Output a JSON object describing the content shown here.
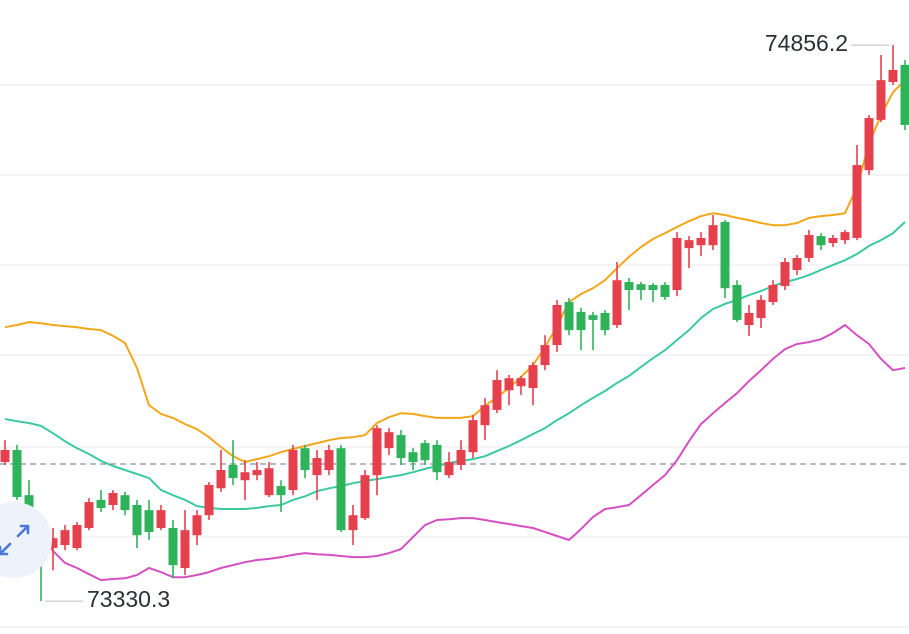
{
  "chart_data": {
    "type": "candlestick",
    "ylim": [
      73240,
      74980
    ],
    "up_color": "#e5404e",
    "down_color": "#2fb35a",
    "open": [
      73712,
      73745,
      73621,
      73553,
      73476,
      73484,
      73476,
      73531,
      73608,
      73594,
      73621,
      73594,
      73580,
      73531,
      73531,
      73421,
      73511,
      73566,
      73640,
      73704,
      73662,
      73676,
      73621,
      73646,
      73635,
      73750,
      73676,
      73690,
      73750,
      73525,
      73558,
      73676,
      73750,
      73786,
      73739,
      73764,
      73759,
      73676,
      73704,
      73739,
      73813,
      73855,
      73909,
      73920,
      73915,
      73978,
      74033,
      74151,
      74124,
      74115,
      74121,
      74088,
      74206,
      74200,
      74198,
      74198,
      74184,
      74299,
      74307,
      74307,
      74371,
      74198,
      74088,
      74107,
      74151,
      74195,
      74239,
      74272,
      74332,
      74313,
      74321,
      74327,
      74513,
      74651,
      74755,
      74802
    ],
    "high": [
      73772,
      73759,
      73662,
      73566,
      73531,
      73539,
      73547,
      73613,
      73635,
      73635,
      73630,
      73608,
      73608,
      73594,
      73553,
      73580,
      73580,
      73657,
      73745,
      73772,
      73717,
      73712,
      73712,
      73662,
      73759,
      73759,
      73745,
      73759,
      73759,
      73594,
      73690,
      73813,
      73805,
      73800,
      73750,
      73772,
      73772,
      73739,
      73772,
      73841,
      73888,
      73964,
      73951,
      73948,
      73986,
      74060,
      74157,
      74162,
      74135,
      74124,
      74129,
      74261,
      74217,
      74206,
      74203,
      74206,
      74343,
      74332,
      74343,
      74390,
      74376,
      74211,
      74143,
      74170,
      74211,
      74272,
      74280,
      74349,
      74340,
      74335,
      74349,
      74582,
      74664,
      74829,
      74856.2,
      74815
    ],
    "low": [
      73704,
      73608,
      73498,
      73330.3,
      73415,
      73470,
      73470,
      73525,
      73575,
      73580,
      73566,
      73476,
      73498,
      73525,
      73393,
      73402,
      73484,
      73553,
      73630,
      73649,
      73608,
      73662,
      73616,
      73575,
      73621,
      73668,
      73608,
      73676,
      73520,
      73484,
      73553,
      73621,
      73731,
      73704,
      73690,
      73704,
      73662,
      73668,
      73690,
      73723,
      73772,
      73846,
      73868,
      73896,
      73868,
      73964,
      74014,
      74060,
      74019,
      74019,
      74060,
      74080,
      74129,
      74157,
      74151,
      74157,
      74167,
      74244,
      74277,
      74294,
      74162,
      74096,
      74058,
      74080,
      74143,
      74184,
      74225,
      74261,
      74294,
      74302,
      74310,
      74321,
      74500,
      74645,
      74747,
      74623
    ],
    "close": [
      73745,
      73616,
      73553,
      73470,
      73503,
      73525,
      73539,
      73602,
      73586,
      73627,
      73580,
      73511,
      73520,
      73580,
      73429,
      73525,
      73566,
      73649,
      73690,
      73668,
      73684,
      73690,
      73695,
      73621,
      73745,
      73690,
      73723,
      73745,
      73525,
      73566,
      73676,
      73805,
      73794,
      73723,
      73712,
      73717,
      73684,
      73712,
      73745,
      73827,
      73868,
      73937,
      73942,
      73942,
      73978,
      74033,
      74143,
      74074,
      74074,
      74102,
      74074,
      74211,
      74184,
      74184,
      74184,
      74165,
      74327,
      74321,
      74327,
      74362,
      74189,
      74102,
      74121,
      74157,
      74198,
      74261,
      74272,
      74335,
      74307,
      74327,
      74343,
      74527,
      74656,
      74760,
      74788,
      74637
    ],
    "bands": [
      {
        "color": "#f2a71b",
        "values": [
          74082,
          74088,
          74096,
          74093,
          74088,
          74085,
          74082,
          74077,
          74074,
          74058,
          74039,
          73970,
          73868,
          73844,
          73833,
          73816,
          73802,
          73780,
          73753,
          73728,
          73712,
          73720,
          73728,
          73739,
          73748,
          73756,
          73764,
          73772,
          73778,
          73780,
          73786,
          73819,
          73835,
          73846,
          73844,
          73838,
          73833,
          73833,
          73833,
          73838,
          73866,
          73890,
          73915,
          73945,
          73978,
          74027,
          74085,
          74151,
          74173,
          74189,
          74211,
          74244,
          74275,
          74302,
          74324,
          74340,
          74357,
          74373,
          74387,
          74395,
          74390,
          74382,
          74376,
          74368,
          74362,
          74362,
          74368,
          74382,
          74387,
          74390,
          74395,
          74467,
          74585,
          74664,
          74727,
          74760
        ]
      },
      {
        "color": "#3cc9a2",
        "values": [
          73830,
          73824,
          73819,
          73811,
          73791,
          73769,
          73750,
          73734,
          73715,
          73701,
          73690,
          73679,
          73668,
          73635,
          73621,
          73608,
          73591,
          73586,
          73583,
          73583,
          73583,
          73586,
          73591,
          73594,
          73608,
          73618,
          73632,
          73640,
          73646,
          73654,
          73660,
          73665,
          73671,
          73676,
          73684,
          73693,
          73701,
          73709,
          73715,
          73720,
          73728,
          73742,
          73756,
          73772,
          73789,
          73805,
          73827,
          73846,
          73868,
          73888,
          73907,
          73929,
          73948,
          73973,
          73997,
          74019,
          74047,
          74074,
          74107,
          74132,
          74146,
          74157,
          74170,
          74181,
          74195,
          74206,
          74214,
          74225,
          74239,
          74253,
          74266,
          74283,
          74305,
          74321,
          74340,
          74371
        ]
      },
      {
        "color": "#d550c0",
        "values": [
          73591,
          73572,
          73553,
          73511,
          73468,
          73435,
          73421,
          73404,
          73388,
          73391,
          73393,
          73402,
          73421,
          73410,
          73396,
          73396,
          73402,
          73410,
          73421,
          73429,
          73437,
          73443,
          73446,
          73451,
          73457,
          73462,
          73459,
          73457,
          73454,
          73451,
          73451,
          73454,
          73462,
          73473,
          73506,
          73539,
          73553,
          73555,
          73558,
          73558,
          73553,
          73547,
          73542,
          73536,
          73531,
          73520,
          73509,
          73498,
          73528,
          73561,
          73583,
          73588,
          73594,
          73621,
          73649,
          73676,
          73717,
          73769,
          73816,
          73846,
          73874,
          73901,
          73934,
          73964,
          73995,
          74022,
          74036,
          74041,
          74049,
          74066,
          74088,
          74060,
          74036,
          73995,
          73964,
          73970
        ]
      }
    ]
  }
}
